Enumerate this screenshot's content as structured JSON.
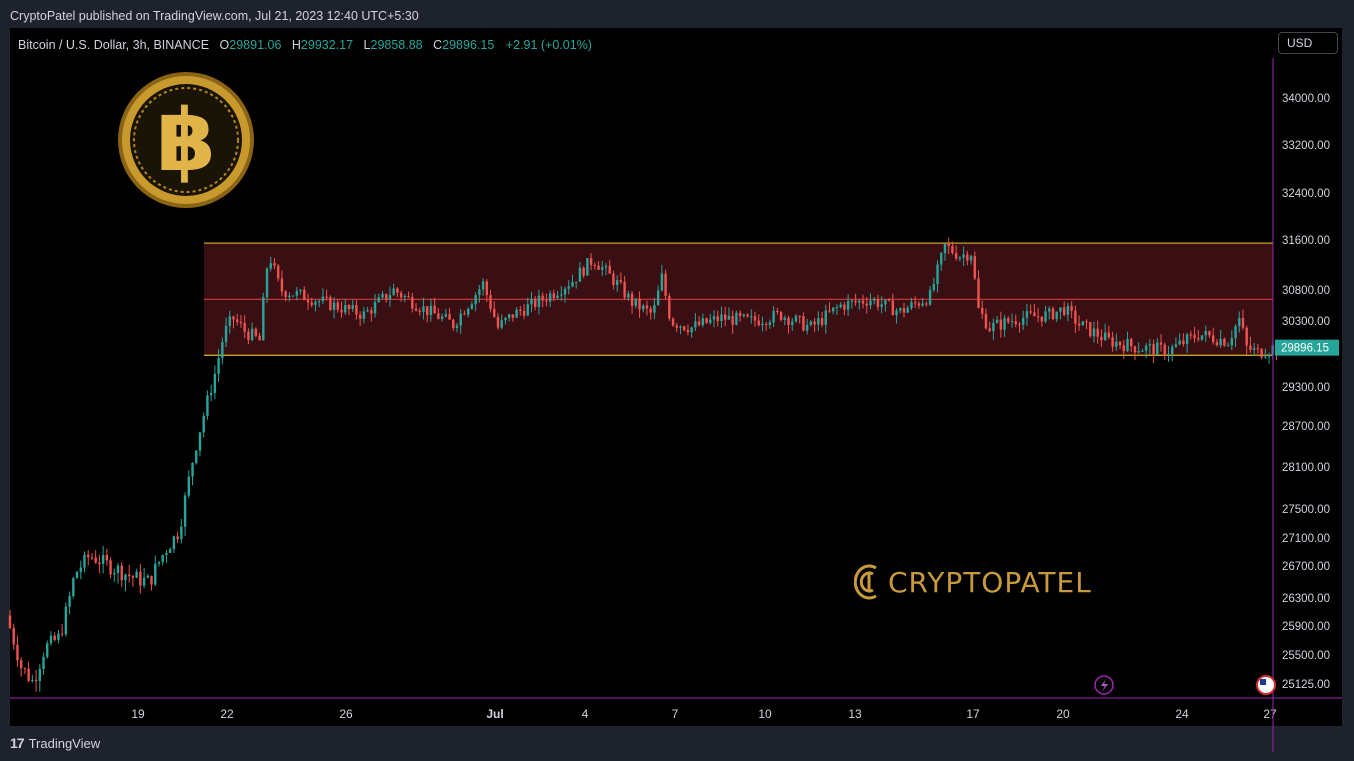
{
  "header": {
    "published": "CryptoPatel published on TradingView.com, Jul 21, 2023 12:40 UTC+5:30"
  },
  "legend": {
    "symbol": "Bitcoin / U.S. Dollar, 3h, BINANCE",
    "o_label": "O",
    "o_value": "29891.06",
    "h_label": "H",
    "h_value": "29932.17",
    "l_label": "L",
    "l_value": "29858.88",
    "c_label": "C",
    "c_value": "29896.15",
    "change": "+2.91 (+0.01%)"
  },
  "currency_button": "USD",
  "watermark": "CRYPTOPATEL",
  "footer": {
    "brand": "TradingView"
  },
  "colors": {
    "up": "#26a69a",
    "down": "#ef5350",
    "range_fill": "#3a0f14",
    "range_border": "#c9a227",
    "midline": "#d43a3a",
    "accent_line": "#9c27b0",
    "logo_gold": "#c99a3c"
  },
  "chart_data": {
    "type": "candlestick",
    "symbol": "BTCUSD",
    "interval": "3h",
    "exchange": "BINANCE",
    "y_ticks": [
      "34000.00",
      "33200.00",
      "32400.00",
      "31600.00",
      "30800.00",
      "30300.00",
      "29896.15",
      "29300.00",
      "28700.00",
      "28100.00",
      "27500.00",
      "27100.00",
      "26700.00",
      "26300.00",
      "25900.00",
      "25500.00",
      "25125.00"
    ],
    "last_price": "29896.15",
    "x_ticks": [
      "19",
      "22",
      "26",
      "Jul",
      "4",
      "7",
      "10",
      "13",
      "17",
      "20",
      "24",
      "27"
    ],
    "range_box": {
      "start": "Jun 21",
      "top": 31550,
      "mid": 30650,
      "bottom": 29780
    },
    "trend_path": [
      {
        "day": 0,
        "price": 26050
      },
      {
        "day": 0.5,
        "price": 25350
      },
      {
        "day": 0.9,
        "price": 25150
      },
      {
        "day": 1.3,
        "price": 25600
      },
      {
        "day": 1.8,
        "price": 25750
      },
      {
        "day": 2.3,
        "price": 26600
      },
      {
        "day": 2.8,
        "price": 26850
      },
      {
        "day": 3.5,
        "price": 26700
      },
      {
        "day": 4.3,
        "price": 26550
      },
      {
        "day": 4.8,
        "price": 26500
      },
      {
        "day": 5.3,
        "price": 26900
      },
      {
        "day": 5.8,
        "price": 27200
      },
      {
        "day": 6.3,
        "price": 28300
      },
      {
        "day": 6.7,
        "price": 29000
      },
      {
        "day": 7.0,
        "price": 29500
      },
      {
        "day": 7.3,
        "price": 30100
      },
      {
        "day": 7.6,
        "price": 30350
      },
      {
        "day": 8.0,
        "price": 30150
      },
      {
        "day": 8.5,
        "price": 30000
      },
      {
        "day": 8.8,
        "price": 31400
      },
      {
        "day": 9.2,
        "price": 30800
      },
      {
        "day": 10,
        "price": 30700
      },
      {
        "day": 11,
        "price": 30550
      },
      {
        "day": 12,
        "price": 30400
      },
      {
        "day": 13,
        "price": 30800
      },
      {
        "day": 14,
        "price": 30500
      },
      {
        "day": 15,
        "price": 30250
      },
      {
        "day": 16,
        "price": 30900
      },
      {
        "day": 16.5,
        "price": 30200
      },
      {
        "day": 17,
        "price": 30400
      },
      {
        "day": 18,
        "price": 30650
      },
      {
        "day": 19,
        "price": 30950
      },
      {
        "day": 19.7,
        "price": 31300
      },
      {
        "day": 20.5,
        "price": 30900
      },
      {
        "day": 21,
        "price": 30600
      },
      {
        "day": 21.7,
        "price": 30400
      },
      {
        "day": 22,
        "price": 31000
      },
      {
        "day": 22.3,
        "price": 30300
      },
      {
        "day": 23,
        "price": 30200
      },
      {
        "day": 24,
        "price": 30350
      },
      {
        "day": 25,
        "price": 30300
      },
      {
        "day": 26,
        "price": 30400
      },
      {
        "day": 27,
        "price": 30200
      },
      {
        "day": 28,
        "price": 30550
      },
      {
        "day": 29,
        "price": 30650
      },
      {
        "day": 30,
        "price": 30450
      },
      {
        "day": 31,
        "price": 30700
      },
      {
        "day": 31.5,
        "price": 31500
      },
      {
        "day": 32,
        "price": 31350
      },
      {
        "day": 32.4,
        "price": 31400
      },
      {
        "day": 32.6,
        "price": 30500
      },
      {
        "day": 33,
        "price": 30200
      },
      {
        "day": 34,
        "price": 30350
      },
      {
        "day": 35,
        "price": 30400
      },
      {
        "day": 35.5,
        "price": 30500
      },
      {
        "day": 36,
        "price": 30250
      },
      {
        "day": 37,
        "price": 30000
      },
      {
        "day": 38,
        "price": 29900
      },
      {
        "day": 39,
        "price": 29850
      },
      {
        "day": 40,
        "price": 30100
      },
      {
        "day": 41,
        "price": 30000
      },
      {
        "day": 41.4,
        "price": 30350
      },
      {
        "day": 41.6,
        "price": 29900
      },
      {
        "day": 42.0,
        "price": 29820
      },
      {
        "day": 42.5,
        "price": 29896
      }
    ]
  }
}
